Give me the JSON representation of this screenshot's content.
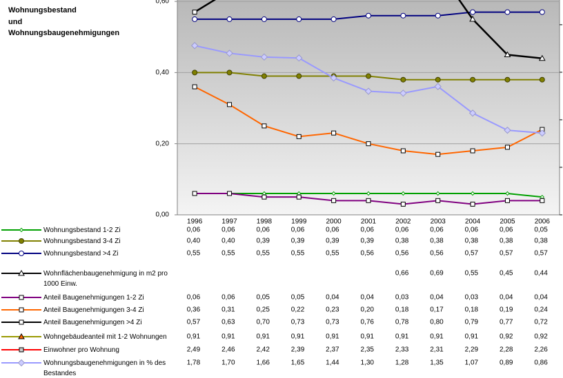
{
  "chart_data": {
    "type": "line",
    "title": "Wohnungsbestand und Wohnungsbaugenehmigungen",
    "categories": [
      "1996",
      "1997",
      "1998",
      "1999",
      "2000",
      "2001",
      "2002",
      "2003",
      "2004",
      "2005",
      "2006"
    ],
    "ylim": [
      0,
      0.604
    ],
    "yticks": [
      {
        "value": 0,
        "label": "0,00"
      },
      {
        "value": 0.2,
        "label": "0,20"
      },
      {
        "value": 0.4,
        "label": "0,40"
      },
      {
        "value": 0.6,
        "label": "0,60"
      }
    ],
    "y2lim": [
      0,
      2.26
    ],
    "y2ticks": [
      0,
      0.5,
      1,
      1.5,
      2
    ],
    "grid": true,
    "series": [
      {
        "name": "Wohnungsbestand 1-2 Zi",
        "color": "#00a000",
        "marker": "diamond",
        "values": [
          0.06,
          0.06,
          0.06,
          0.06,
          0.06,
          0.06,
          0.06,
          0.06,
          0.06,
          0.06,
          0.05
        ],
        "value_labels": [
          "0,06",
          "0,06",
          "0,06",
          "0,06",
          "0,06",
          "0,06",
          "0,06",
          "0,06",
          "0,06",
          "0,06",
          "0,05"
        ]
      },
      {
        "name": "Wohnungsbestand 3-4 Zi",
        "color": "#808000",
        "marker": "circle-filled",
        "values": [
          0.4,
          0.4,
          0.39,
          0.39,
          0.39,
          0.39,
          0.38,
          0.38,
          0.38,
          0.38,
          0.38
        ],
        "value_labels": [
          "0,40",
          "0,40",
          "0,39",
          "0,39",
          "0,39",
          "0,39",
          "0,38",
          "0,38",
          "0,38",
          "0,38",
          "0,38"
        ]
      },
      {
        "name": "Wohnungsbestand >4 Zi",
        "color": "#000080",
        "marker": "circle",
        "values": [
          0.55,
          0.55,
          0.55,
          0.55,
          0.55,
          0.56,
          0.56,
          0.56,
          0.57,
          0.57,
          0.57
        ],
        "value_labels": [
          "0,55",
          "0,55",
          "0,55",
          "0,55",
          "0,55",
          "0,56",
          "0,56",
          "0,56",
          "0,57",
          "0,57",
          "0,57"
        ]
      },
      {
        "name": "Wohnflächenbaugenehmigung in m2 pro 1000 Einw.",
        "color": "#000000",
        "marker": "triangle",
        "values": [
          null,
          null,
          null,
          null,
          null,
          null,
          0.66,
          0.69,
          0.55,
          0.45,
          0.44
        ],
        "value_labels": [
          null,
          null,
          null,
          null,
          null,
          null,
          "0,66",
          "0,69",
          "0,55",
          "0,45",
          "0,44"
        ]
      },
      {
        "name": "Anteil Baugenehmigungen 1-2 Zi",
        "color": "#800080",
        "marker": "square",
        "values": [
          0.06,
          0.06,
          0.05,
          0.05,
          0.04,
          0.04,
          0.03,
          0.04,
          0.03,
          0.04,
          0.04
        ],
        "value_labels": [
          "0,06",
          "0,06",
          "0,05",
          "0,05",
          "0,04",
          "0,04",
          "0,03",
          "0,04",
          "0,03",
          "0,04",
          "0,04"
        ]
      },
      {
        "name": "Anteil Baugenehmigungen 3-4 Zi",
        "color": "#ff6600",
        "marker": "square",
        "values": [
          0.36,
          0.31,
          0.25,
          0.22,
          0.23,
          0.2,
          0.18,
          0.17,
          0.18,
          0.19,
          0.24
        ],
        "value_labels": [
          "0,36",
          "0,31",
          "0,25",
          "0,22",
          "0,23",
          "0,20",
          "0,18",
          "0,17",
          "0,18",
          "0,19",
          "0,24"
        ]
      },
      {
        "name": "Anteil Baugenehmigungen >4 Zi",
        "color": "#333333",
        "marker": "square",
        "values": [
          0.57,
          0.63,
          0.7,
          0.73,
          0.73,
          0.76,
          0.78,
          0.8,
          0.79,
          0.77,
          0.72
        ],
        "value_labels": [
          "0,57",
          "0,63",
          "0,70",
          "0,73",
          "0,73",
          "0,76",
          "0,78",
          "0,80",
          "0,79",
          "0,77",
          "0,72"
        ]
      },
      {
        "name": "Wohngebäudeanteil mit 1-2 Wohnungen",
        "color": "#999900",
        "marker": "triangle",
        "values": [
          0.91,
          0.91,
          0.91,
          0.91,
          0.91,
          0.91,
          0.91,
          0.91,
          0.91,
          0.92,
          0.92
        ],
        "value_labels": [
          "0,91",
          "0,91",
          "0,91",
          "0,91",
          "0,91",
          "0,91",
          "0,91",
          "0,91",
          "0,91",
          "0,92",
          "0,92"
        ]
      },
      {
        "name": "Einwohner pro Wohnung",
        "color": "#ff0000",
        "marker": "square",
        "values": [
          2.49,
          2.46,
          2.42,
          2.39,
          2.37,
          2.35,
          2.33,
          2.31,
          2.29,
          2.28,
          2.26
        ],
        "value_labels": [
          "2,49",
          "2,46",
          "2,42",
          "2,39",
          "2,37",
          "2,35",
          "2,33",
          "2,31",
          "2,29",
          "2,28",
          "2,26"
        ]
      },
      {
        "name": "Wohnungsbaugenehmigungen in % des Bestandes",
        "color": "#9999ff",
        "marker": "diamond",
        "axis": "y2",
        "values": [
          1.78,
          1.7,
          1.66,
          1.65,
          1.44,
          1.3,
          1.28,
          1.35,
          1.07,
          0.89,
          0.86
        ],
        "value_labels": [
          "1,78",
          "1,70",
          "1,66",
          "1,65",
          "1,44",
          "1,30",
          "1,28",
          "1,35",
          "1,07",
          "0,89",
          "0,86"
        ]
      }
    ]
  }
}
